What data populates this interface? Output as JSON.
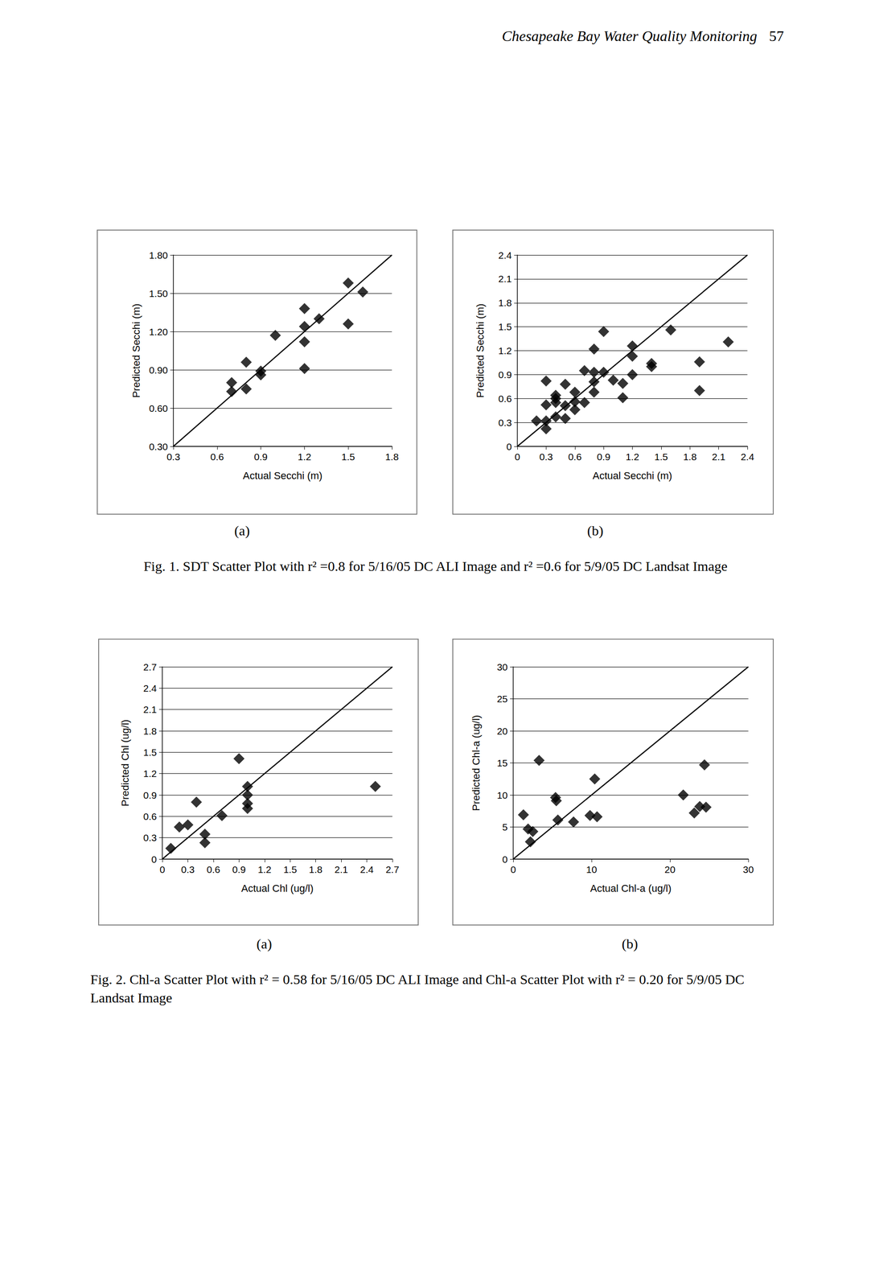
{
  "page": {
    "running_head": "Chesapeake Bay Water Quality Monitoring",
    "page_number": 57
  },
  "figures": [
    {
      "caption": "Fig. 1. SDT Scatter Plot with r² =0.8 for 5/16/05 DC ALI Image and r² =0.6 for 5/9/05 DC Landsat Image",
      "panels": [
        "(a)",
        "(b)"
      ]
    },
    {
      "caption": "Fig. 2. Chl-a Scatter Plot with r² = 0.58 for 5/16/05 DC ALI Image and Chl-a Scatter Plot with r² = 0.20 for 5/9/05 DC Landsat Image",
      "panels": [
        "(a)",
        "(b)"
      ]
    }
  ],
  "chart_data": [
    {
      "type": "scatter",
      "x_label": "Actual Secchi (m)",
      "y_label": "Predicted Secchi (m)",
      "xlim": [
        0.3,
        1.8
      ],
      "ylim": [
        0.3,
        1.8
      ],
      "xticks": [
        0.3,
        0.6,
        0.9,
        1.2,
        1.5,
        1.8
      ],
      "yticks": [
        {
          "value": 0.3,
          "label": "0.30"
        },
        {
          "value": 0.6,
          "label": "0.60"
        },
        {
          "value": 0.9,
          "label": "0.90"
        },
        {
          "value": 1.2,
          "label": "1.20"
        },
        {
          "value": 1.5,
          "label": "1.50"
        },
        {
          "value": 1.8,
          "label": "1.80"
        }
      ],
      "grid": true,
      "series": [
        {
          "type": "scatter",
          "marker": "diamond",
          "color": "#000000",
          "x": [
            0.7,
            0.7,
            0.8,
            0.8,
            0.9,
            0.9,
            1.0,
            1.2,
            1.2,
            1.2,
            1.2,
            1.3,
            1.5,
            1.5,
            1.6
          ],
          "values": [
            0.8,
            0.73,
            0.96,
            0.75,
            0.89,
            0.86,
            1.17,
            1.38,
            1.24,
            1.12,
            0.91,
            1.3,
            1.58,
            1.26,
            1.51
          ]
        },
        {
          "type": "line",
          "line_style": "solid",
          "color": "#000000",
          "x": [
            0.3,
            1.8
          ],
          "values": [
            0.3,
            1.8
          ]
        }
      ]
    },
    {
      "type": "scatter",
      "x_label": "Actual Secchi (m)",
      "y_label": "Predicted Secchi (m)",
      "xlim": [
        0,
        2.4
      ],
      "ylim": [
        0,
        2.4
      ],
      "xticks": [
        0,
        0.3,
        0.6,
        0.9,
        1.2,
        1.5,
        1.8,
        2.1,
        2.4
      ],
      "yticks": [
        0,
        0.3,
        0.6,
        0.9,
        1.2,
        1.5,
        1.8,
        2.1,
        2.4
      ],
      "grid": true,
      "series": [
        {
          "type": "scatter",
          "marker": "diamond",
          "color": "#000000",
          "x": [
            0.2,
            0.3,
            0.3,
            0.3,
            0.3,
            0.4,
            0.4,
            0.4,
            0.4,
            0.5,
            0.5,
            0.5,
            0.6,
            0.6,
            0.6,
            0.7,
            0.7,
            0.8,
            0.8,
            0.8,
            0.8,
            0.9,
            0.9,
            1.0,
            1.1,
            1.1,
            1.2,
            1.2,
            1.2,
            1.4,
            1.4,
            1.6,
            1.9,
            1.9,
            2.2
          ],
          "values": [
            0.32,
            0.82,
            0.52,
            0.32,
            0.22,
            0.64,
            0.6,
            0.55,
            0.37,
            0.78,
            0.51,
            0.35,
            0.68,
            0.56,
            0.46,
            0.95,
            0.55,
            1.22,
            0.93,
            0.81,
            0.68,
            1.44,
            0.93,
            0.83,
            0.79,
            0.61,
            1.26,
            1.13,
            0.9,
            1.04,
            1.0,
            1.46,
            1.06,
            0.7,
            1.31
          ]
        },
        {
          "type": "line",
          "line_style": "solid",
          "color": "#000000",
          "x": [
            0,
            2.4
          ],
          "values": [
            0,
            2.4
          ]
        }
      ]
    },
    {
      "type": "scatter",
      "x_label": "Actual Chl (ug/l)",
      "y_label": "Predicted Chl (ug/l)",
      "xlim": [
        0,
        2.7
      ],
      "ylim": [
        0,
        2.7
      ],
      "xticks": [
        0,
        0.3,
        0.6,
        0.9,
        1.2,
        1.5,
        1.8,
        2.1,
        2.4,
        2.7
      ],
      "yticks": [
        0,
        0.3,
        0.6,
        0.9,
        1.2,
        1.5,
        1.8,
        2.1,
        2.4,
        2.7
      ],
      "grid": true,
      "series": [
        {
          "type": "scatter",
          "marker": "diamond",
          "color": "#000000",
          "x": [
            0.1,
            0.2,
            0.3,
            0.4,
            0.5,
            0.5,
            0.7,
            0.9,
            1.0,
            1.0,
            1.0,
            1.0,
            2.5
          ],
          "values": [
            0.15,
            0.45,
            0.48,
            0.8,
            0.35,
            0.23,
            0.61,
            1.41,
            1.02,
            0.9,
            0.78,
            0.71,
            1.02
          ]
        },
        {
          "type": "line",
          "line_style": "solid",
          "color": "#000000",
          "x": [
            0,
            2.7
          ],
          "values": [
            0,
            2.7
          ]
        }
      ]
    },
    {
      "type": "scatter",
      "x_label": "Actual Chl-a (ug/l)",
      "y_label": "Predicted Chl-a (ug/l)",
      "xlim": [
        0,
        30
      ],
      "ylim": [
        0,
        30
      ],
      "xticks": [
        0,
        10,
        20,
        30
      ],
      "yticks": [
        0,
        5,
        10,
        15,
        20,
        25,
        30
      ],
      "grid": true,
      "series": [
        {
          "type": "scatter",
          "marker": "diamond",
          "color": "#000000",
          "x": [
            1.3,
            1.9,
            2.5,
            2.2,
            3.3,
            5.4,
            5.5,
            5.7,
            7.7,
            9.8,
            10.4,
            10.7,
            21.7,
            23.1,
            23.8,
            24.4,
            24.6
          ],
          "values": [
            6.9,
            4.7,
            4.3,
            2.7,
            15.4,
            9.6,
            9.1,
            6.1,
            5.8,
            6.8,
            12.5,
            6.6,
            10.0,
            7.2,
            8.2,
            14.7,
            8.1
          ]
        },
        {
          "type": "line",
          "line_style": "solid",
          "color": "#000000",
          "x": [
            0,
            30
          ],
          "values": [
            0,
            30
          ]
        }
      ]
    }
  ]
}
